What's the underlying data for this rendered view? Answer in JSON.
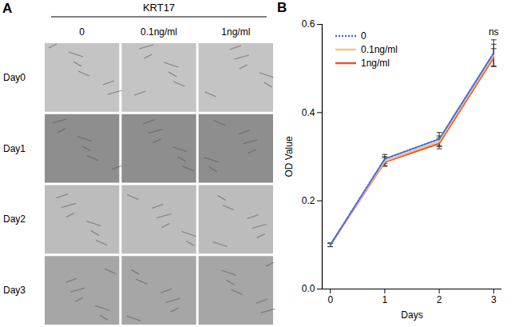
{
  "figure": {
    "panel_a": {
      "label": "A",
      "header": "KRT17",
      "columns": [
        "0",
        "0.1ng/ml",
        "1ng/ml"
      ],
      "rows": [
        "Day0",
        "Day1",
        "Day2",
        "Day3"
      ]
    },
    "panel_b_label": "B"
  },
  "chart_data": {
    "type": "line",
    "x_label": "Days",
    "y_label": "OD Value",
    "x": [
      0,
      1,
      2,
      3
    ],
    "series": [
      {
        "name": "0",
        "color": "#4a6fd0",
        "line_style": "dotted",
        "values": [
          0.1,
          0.295,
          0.34,
          0.535
        ],
        "errors": [
          0.004,
          0.01,
          0.015,
          0.03
        ]
      },
      {
        "name": "0.1ng/ml",
        "color": "#f6c48c",
        "line_style": "solid",
        "values": [
          0.1,
          0.29,
          0.335,
          0.53
        ],
        "errors": [
          0.004,
          0.01,
          0.012,
          0.025
        ]
      },
      {
        "name": "1ng/ml",
        "color": "#e5562d",
        "line_style": "solid",
        "values": [
          0.1,
          0.288,
          0.33,
          0.525
        ],
        "errors": [
          0.004,
          0.01,
          0.012,
          0.02
        ]
      }
    ],
    "xlim": [
      -0.15,
      3.15
    ],
    "xticks": [
      0,
      1,
      2,
      3
    ],
    "ylim": [
      0,
      0.6
    ],
    "yticks": [
      {
        "value": 0,
        "label": "0.0"
      },
      0.2,
      0.4,
      0.6
    ],
    "annotations": [
      {
        "text": "ns",
        "x": 3
      }
    ],
    "legend": "upper left",
    "grid": false
  }
}
